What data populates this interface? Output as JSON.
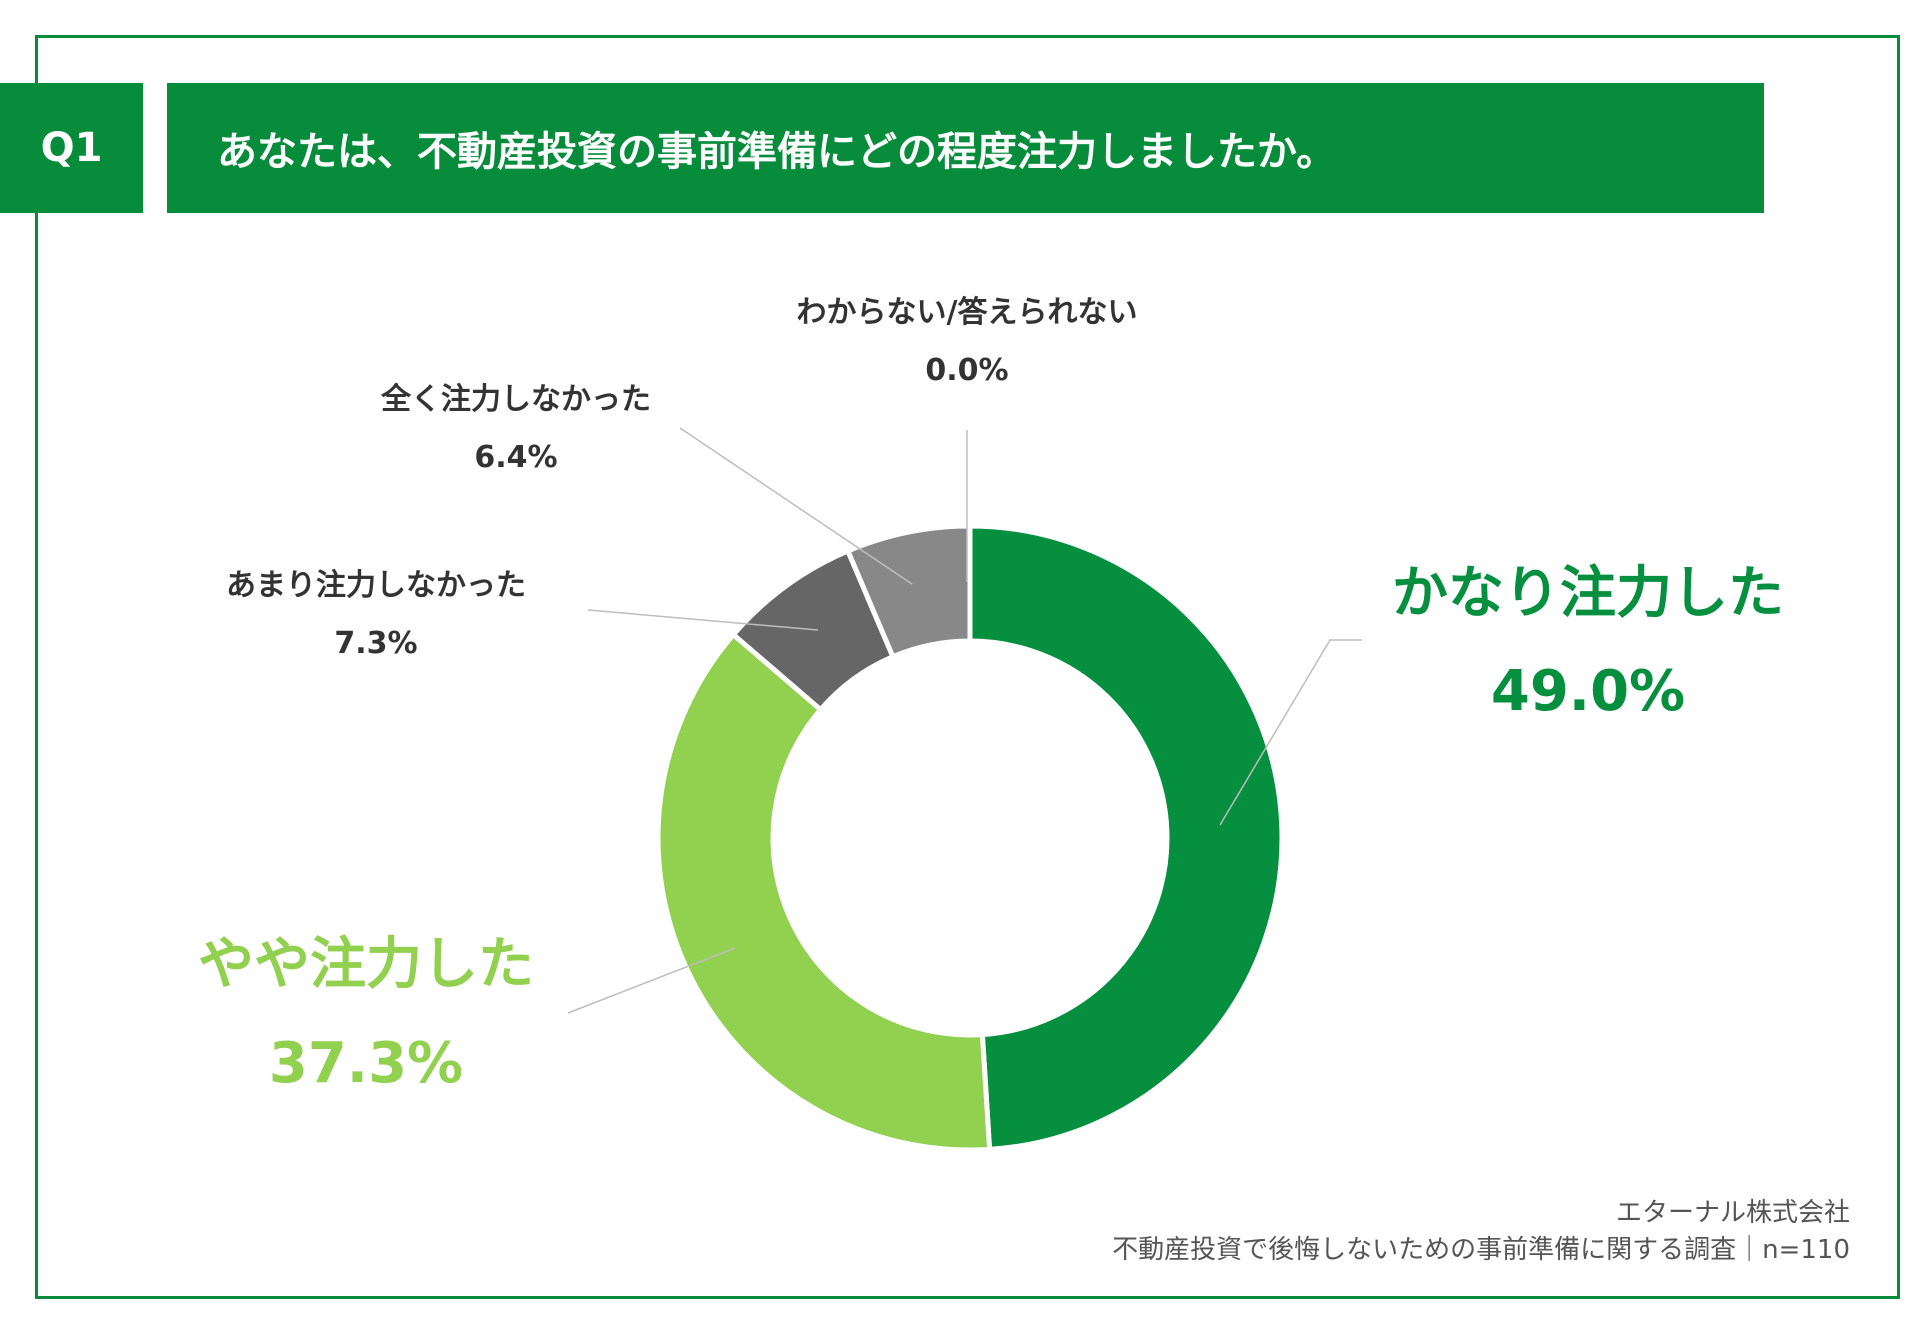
{
  "header": {
    "badge": "Q1",
    "question": "あなたは、不動産投資の事前準備にどの程度注力しましたか。"
  },
  "chart_data": {
    "type": "pie",
    "donut": true,
    "categories": [
      "かなり注力した",
      "やや注力した",
      "あまり注力しなかった",
      "全く注力しなかった",
      "わからない/答えられない"
    ],
    "values": [
      49.0,
      37.3,
      7.3,
      6.4,
      0.0
    ],
    "value_labels": [
      "49.0%",
      "37.3%",
      "7.3%",
      "6.4%",
      "0.0%"
    ],
    "colors": [
      "#068f3f",
      "#92d050",
      "#666666",
      "#888888",
      "#bfbfbf"
    ],
    "title": "",
    "legend": "none"
  },
  "footer": {
    "company": "エターナル株式会社",
    "survey": "不動産投資で後悔しないための事前準備に関する調査｜n=110"
  }
}
